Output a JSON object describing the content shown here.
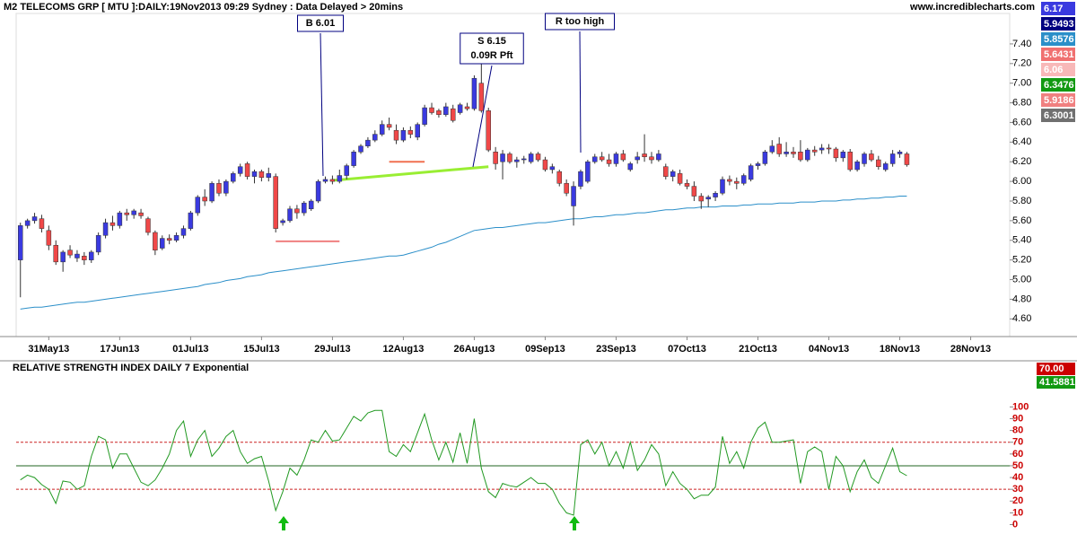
{
  "header": {
    "title": "M2 TELECOMS GRP [ MTU ]:DAILY:19Nov2013 09:29 Sydney : Data Delayed > 20mins",
    "site": "www.incrediblecharts.com"
  },
  "chart_data": [
    {
      "type": "candlestick",
      "up_color": "#3a3ae0",
      "down_color": "#f04848",
      "xlim": [
        -0.6,
        139.5
      ],
      "xticks": [
        {
          "value": 4,
          "label": "31May13"
        },
        {
          "value": 14,
          "label": "17Jun13"
        },
        {
          "value": 24,
          "label": "01Jul13"
        },
        {
          "value": 34,
          "label": "15Jul13"
        },
        {
          "value": 44,
          "label": "29Jul13"
        },
        {
          "value": 54,
          "label": "12Aug13"
        },
        {
          "value": 64,
          "label": "26Aug13"
        },
        {
          "value": 74,
          "label": "09Sep13"
        },
        {
          "value": 84,
          "label": "23Sep13"
        },
        {
          "value": 94,
          "label": "07Oct13"
        },
        {
          "value": 104,
          "label": "21Oct13"
        },
        {
          "value": 114,
          "label": "04Nov13"
        },
        {
          "value": 124,
          "label": "18Nov13"
        },
        {
          "value": 134,
          "label": "28Nov13"
        }
      ],
      "ylim": [
        4.42,
        7.71
      ],
      "yticks": [
        {
          "value": 4.6,
          "label": "4.60"
        },
        {
          "value": 4.8,
          "label": "4.80"
        },
        {
          "value": 5.0,
          "label": "5.00"
        },
        {
          "value": 5.2,
          "label": "5.20"
        },
        {
          "value": 5.4,
          "label": "5.40"
        },
        {
          "value": 5.6,
          "label": "5.60"
        },
        {
          "value": 5.8,
          "label": "5.80"
        },
        {
          "value": 6.0,
          "label": "6.00"
        },
        {
          "value": 6.2,
          "label": "6.20"
        },
        {
          "value": 6.4,
          "label": "6.40"
        },
        {
          "value": 6.6,
          "label": "6.60"
        },
        {
          "value": 6.8,
          "label": "6.80"
        },
        {
          "value": 7.0,
          "label": "7.00"
        },
        {
          "value": 7.2,
          "label": "7.20"
        },
        {
          "value": 7.4,
          "label": "7.40"
        }
      ],
      "candles": [
        [
          5.2,
          5.58,
          4.82,
          5.55
        ],
        [
          5.55,
          5.62,
          5.52,
          5.6
        ],
        [
          5.6,
          5.68,
          5.57,
          5.64
        ],
        [
          5.62,
          5.66,
          5.48,
          5.52
        ],
        [
          5.5,
          5.55,
          5.3,
          5.35
        ],
        [
          5.35,
          5.4,
          5.15,
          5.18
        ],
        [
          5.18,
          5.3,
          5.08,
          5.28
        ],
        [
          5.3,
          5.35,
          5.22,
          5.25
        ],
        [
          5.22,
          5.3,
          5.18,
          5.26
        ],
        [
          5.24,
          5.28,
          5.15,
          5.2
        ],
        [
          5.2,
          5.3,
          5.17,
          5.28
        ],
        [
          5.28,
          5.48,
          5.25,
          5.45
        ],
        [
          5.45,
          5.62,
          5.42,
          5.58
        ],
        [
          5.58,
          5.65,
          5.5,
          5.55
        ],
        [
          5.55,
          5.7,
          5.52,
          5.68
        ],
        [
          5.68,
          5.72,
          5.6,
          5.66
        ],
        [
          5.66,
          5.72,
          5.62,
          5.7
        ],
        [
          5.68,
          5.72,
          5.62,
          5.65
        ],
        [
          5.62,
          5.64,
          5.45,
          5.48
        ],
        [
          5.48,
          5.5,
          5.25,
          5.3
        ],
        [
          5.32,
          5.45,
          5.3,
          5.42
        ],
        [
          5.42,
          5.46,
          5.36,
          5.4
        ],
        [
          5.4,
          5.48,
          5.38,
          5.45
        ],
        [
          5.45,
          5.55,
          5.42,
          5.52
        ],
        [
          5.52,
          5.7,
          5.5,
          5.68
        ],
        [
          5.68,
          5.86,
          5.65,
          5.84
        ],
        [
          5.84,
          5.92,
          5.75,
          5.8
        ],
        [
          5.8,
          6.0,
          5.78,
          5.98
        ],
        [
          5.98,
          6.02,
          5.85,
          5.88
        ],
        [
          5.88,
          6.02,
          5.85,
          6.0
        ],
        [
          6.0,
          6.1,
          5.98,
          6.08
        ],
        [
          6.08,
          6.18,
          6.05,
          6.15
        ],
        [
          6.18,
          6.2,
          6.02,
          6.05
        ],
        [
          6.05,
          6.12,
          5.98,
          6.1
        ],
        [
          6.1,
          6.12,
          6.0,
          6.04
        ],
        [
          6.04,
          6.14,
          6.0,
          6.08
        ],
        [
          6.05,
          6.08,
          5.48,
          5.52
        ],
        [
          5.58,
          5.62,
          5.55,
          5.6
        ],
        [
          5.6,
          5.75,
          5.58,
          5.72
        ],
        [
          5.72,
          5.76,
          5.62,
          5.68
        ],
        [
          5.68,
          5.8,
          5.65,
          5.78
        ],
        [
          5.72,
          5.82,
          5.7,
          5.8
        ],
        [
          5.8,
          6.02,
          5.78,
          6.0
        ],
        [
          6.0,
          6.05,
          5.98,
          6.02
        ],
        [
          6.02,
          6.06,
          5.97,
          6.0
        ],
        [
          6.0,
          6.12,
          5.98,
          6.06
        ],
        [
          6.06,
          6.18,
          6.02,
          6.16
        ],
        [
          6.16,
          6.32,
          6.14,
          6.3
        ],
        [
          6.3,
          6.38,
          6.28,
          6.36
        ],
        [
          6.36,
          6.45,
          6.34,
          6.42
        ],
        [
          6.42,
          6.52,
          6.4,
          6.48
        ],
        [
          6.48,
          6.62,
          6.46,
          6.58
        ],
        [
          6.58,
          6.65,
          6.52,
          6.55
        ],
        [
          6.52,
          6.58,
          6.38,
          6.42
        ],
        [
          6.42,
          6.55,
          6.4,
          6.52
        ],
        [
          6.52,
          6.56,
          6.44,
          6.48
        ],
        [
          6.45,
          6.6,
          6.42,
          6.58
        ],
        [
          6.58,
          6.78,
          6.56,
          6.75
        ],
        [
          6.75,
          6.8,
          6.68,
          6.7
        ],
        [
          6.72,
          6.74,
          6.65,
          6.68
        ],
        [
          6.68,
          6.8,
          6.66,
          6.76
        ],
        [
          6.74,
          6.78,
          6.6,
          6.62
        ],
        [
          6.7,
          6.8,
          6.68,
          6.78
        ],
        [
          6.76,
          6.8,
          6.72,
          6.74
        ],
        [
          6.74,
          7.08,
          6.72,
          7.05
        ],
        [
          7.0,
          7.25,
          6.7,
          6.72
        ],
        [
          6.72,
          6.75,
          6.3,
          6.32
        ],
        [
          6.3,
          6.35,
          6.12,
          6.18
        ],
        [
          6.2,
          6.32,
          6.02,
          6.28
        ],
        [
          6.28,
          6.3,
          6.18,
          6.2
        ],
        [
          6.2,
          6.25,
          6.14,
          6.22
        ],
        [
          6.22,
          6.26,
          6.18,
          6.23
        ],
        [
          6.2,
          6.3,
          6.18,
          6.28
        ],
        [
          6.28,
          6.3,
          6.2,
          6.22
        ],
        [
          6.22,
          6.25,
          6.1,
          6.12
        ],
        [
          6.12,
          6.18,
          6.08,
          6.15
        ],
        [
          6.1,
          6.12,
          5.95,
          5.98
        ],
        [
          5.98,
          6.02,
          5.85,
          5.88
        ],
        [
          5.75,
          6.0,
          5.55,
          5.95
        ],
        [
          5.95,
          6.12,
          5.92,
          6.1
        ],
        [
          6.0,
          6.22,
          5.98,
          6.2
        ],
        [
          6.2,
          6.28,
          6.18,
          6.25
        ],
        [
          6.25,
          6.3,
          6.2,
          6.22
        ],
        [
          6.22,
          6.28,
          6.15,
          6.18
        ],
        [
          6.18,
          6.3,
          6.15,
          6.28
        ],
        [
          6.28,
          6.32,
          6.2,
          6.22
        ],
        [
          6.12,
          6.2,
          6.1,
          6.18
        ],
        [
          6.22,
          6.3,
          6.18,
          6.25
        ],
        [
          6.28,
          6.48,
          6.2,
          6.25
        ],
        [
          6.25,
          6.3,
          6.18,
          6.22
        ],
        [
          6.22,
          6.32,
          6.2,
          6.28
        ],
        [
          6.15,
          6.18,
          6.02,
          6.05
        ],
        [
          6.05,
          6.12,
          6.0,
          6.1
        ],
        [
          6.08,
          6.12,
          5.96,
          5.98
        ],
        [
          5.98,
          6.02,
          5.92,
          5.95
        ],
        [
          5.95,
          6.0,
          5.8,
          5.85
        ],
        [
          5.85,
          5.88,
          5.72,
          5.8
        ],
        [
          5.82,
          5.86,
          5.74,
          5.84
        ],
        [
          5.84,
          5.9,
          5.8,
          5.88
        ],
        [
          5.88,
          6.05,
          5.86,
          6.02
        ],
        [
          6.02,
          6.06,
          5.96,
          6.0
        ],
        [
          6.0,
          6.04,
          5.92,
          5.98
        ],
        [
          5.98,
          6.08,
          5.96,
          6.06
        ],
        [
          6.02,
          6.18,
          6.0,
          6.16
        ],
        [
          6.16,
          6.2,
          6.12,
          6.18
        ],
        [
          6.18,
          6.32,
          6.16,
          6.3
        ],
        [
          6.3,
          6.42,
          6.28,
          6.36
        ],
        [
          6.38,
          6.45,
          6.25,
          6.28
        ],
        [
          6.28,
          6.4,
          6.25,
          6.3
        ],
        [
          6.3,
          6.35,
          6.24,
          6.28
        ],
        [
          6.3,
          6.42,
          6.2,
          6.22
        ],
        [
          6.22,
          6.34,
          6.2,
          6.32
        ],
        [
          6.32,
          6.36,
          6.26,
          6.3
        ],
        [
          6.32,
          6.38,
          6.28,
          6.34
        ],
        [
          6.34,
          6.38,
          6.28,
          6.33
        ],
        [
          6.33,
          6.35,
          6.2,
          6.24
        ],
        [
          6.24,
          6.32,
          6.2,
          6.3
        ],
        [
          6.3,
          6.33,
          6.1,
          6.12
        ],
        [
          6.12,
          6.22,
          6.1,
          6.2
        ],
        [
          6.18,
          6.3,
          6.15,
          6.28
        ],
        [
          6.28,
          6.32,
          6.2,
          6.22
        ],
        [
          6.22,
          6.26,
          6.12,
          6.15
        ],
        [
          6.12,
          6.2,
          6.1,
          6.18
        ],
        [
          6.18,
          6.32,
          6.15,
          6.28
        ],
        [
          6.28,
          6.32,
          6.24,
          6.3
        ],
        [
          6.28,
          6.3,
          6.15,
          6.17
        ]
      ],
      "series": [
        {
          "color": "#2b8fc9",
          "values": [
            4.7,
            4.71,
            4.72,
            4.72,
            4.73,
            4.74,
            4.75,
            4.76,
            4.77,
            4.77,
            4.78,
            4.79,
            4.8,
            4.81,
            4.82,
            4.83,
            4.84,
            4.85,
            4.86,
            4.87,
            4.88,
            4.89,
            4.9,
            4.91,
            4.92,
            4.93,
            4.95,
            4.96,
            4.97,
            4.99,
            5.0,
            5.01,
            5.03,
            5.04,
            5.05,
            5.07,
            5.08,
            5.09,
            5.1,
            5.11,
            5.12,
            5.13,
            5.14,
            5.15,
            5.16,
            5.17,
            5.18,
            5.19,
            5.2,
            5.21,
            5.22,
            5.23,
            5.24,
            5.24,
            5.25,
            5.27,
            5.29,
            5.31,
            5.33,
            5.36,
            5.38,
            5.41,
            5.44,
            5.47,
            5.5,
            5.51,
            5.52,
            5.53,
            5.53,
            5.54,
            5.55,
            5.56,
            5.57,
            5.58,
            5.58,
            5.59,
            5.6,
            5.61,
            5.62,
            5.62,
            5.63,
            5.64,
            5.64,
            5.65,
            5.66,
            5.66,
            5.67,
            5.68,
            5.68,
            5.69,
            5.7,
            5.71,
            5.71,
            5.72,
            5.73,
            5.73,
            5.74,
            5.74,
            5.74,
            5.75,
            5.75,
            5.75,
            5.76,
            5.76,
            5.77,
            5.77,
            5.77,
            5.78,
            5.78,
            5.78,
            5.79,
            5.79,
            5.79,
            5.8,
            5.8,
            5.8,
            5.81,
            5.81,
            5.82,
            5.82,
            5.83,
            5.83,
            5.84,
            5.84,
            5.85,
            5.85
          ]
        }
      ],
      "levels": [
        {
          "color": "#99ee33",
          "values": [
            6.01,
            6.15
          ]
        },
        {
          "color": "#f07050",
          "values": [
            6.2,
            6.2
          ]
        },
        {
          "color": "#f08080",
          "values": [
            5.39,
            5.39
          ]
        }
      ],
      "annotations": [
        {
          "lines": [
            "B 6.01"
          ]
        },
        {
          "lines": [
            "S 6.15",
            "0.09R Pft"
          ]
        },
        {
          "lines": [
            "R too high"
          ]
        }
      ],
      "price_labels": [
        {
          "value": 6.17,
          "color": "#3a3ae0"
        },
        {
          "value": 5.9493,
          "color": "#000080"
        },
        {
          "value": 5.8576,
          "color": "#2b8fc9"
        },
        {
          "value": 5.6431,
          "color": "#f07070"
        },
        {
          "value": 6.06,
          "color": "#f8b8b8"
        },
        {
          "value": 6.3476,
          "color": "#119911"
        },
        {
          "value": 5.9186,
          "color": "#f08080"
        },
        {
          "value": 6.3001,
          "color": "#707070"
        }
      ]
    },
    {
      "type": "line",
      "title": "RELATIVE STRENGTH INDEX DAILY 7 Exponential",
      "color": "#229922",
      "ylim": [
        -8,
        127
      ],
      "yticks": [
        0,
        10,
        20,
        30,
        40,
        50,
        60,
        70,
        80,
        90,
        100
      ],
      "hlines": [
        {
          "value": 70,
          "color": "#cc2222",
          "dash": true
        },
        {
          "value": 50,
          "color": "#226622",
          "dash": false
        },
        {
          "value": 30,
          "color": "#cc2222",
          "dash": true
        }
      ],
      "values": [
        38,
        42,
        40,
        34,
        30,
        18,
        37,
        36,
        30,
        33,
        58,
        75,
        72,
        48,
        60,
        60,
        48,
        36,
        33,
        38,
        48,
        60,
        80,
        88,
        58,
        72,
        80,
        58,
        65,
        75,
        80,
        62,
        52,
        56,
        58,
        37,
        12,
        28,
        48,
        42,
        55,
        72,
        70,
        80,
        71,
        72,
        82,
        92,
        88,
        95,
        97,
        97,
        62,
        58,
        68,
        62,
        78,
        94,
        72,
        55,
        70,
        53,
        78,
        52,
        90,
        48,
        28,
        23,
        35,
        33,
        32,
        36,
        40,
        35,
        35,
        30,
        18,
        10,
        8,
        68,
        72,
        60,
        70,
        50,
        62,
        48,
        70,
        46,
        55,
        68,
        60,
        33,
        45,
        35,
        30,
        22,
        25,
        25,
        32,
        75,
        52,
        62,
        48,
        70,
        82,
        87,
        70,
        70,
        71,
        72,
        35,
        62,
        66,
        62,
        30,
        58,
        50,
        28,
        45,
        55,
        40,
        35,
        50,
        65,
        45,
        41.5881
      ],
      "value_labels": [
        {
          "value": 70,
          "label": "70.00",
          "color": "#cc0000"
        },
        {
          "value": 41.5881,
          "color": "#119911"
        }
      ]
    }
  ]
}
